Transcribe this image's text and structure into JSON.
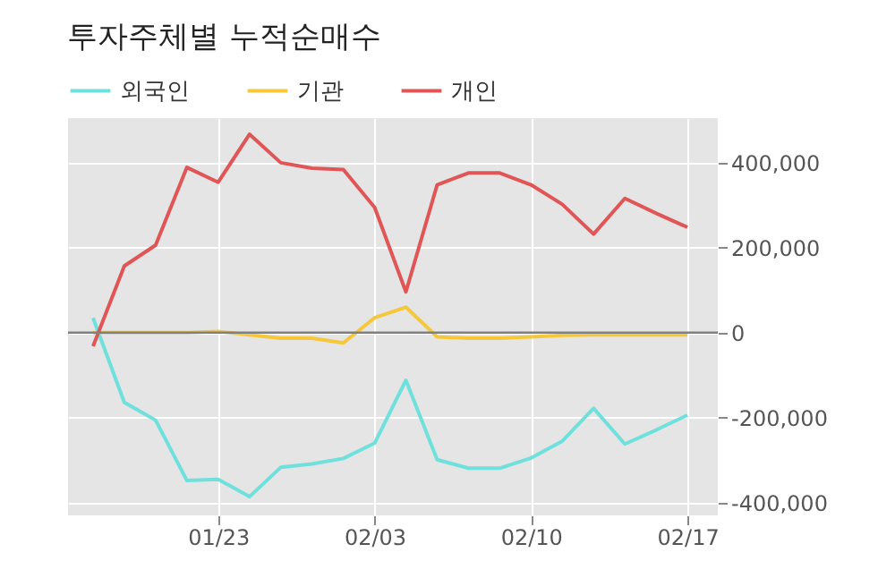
{
  "chart_data": {
    "type": "line",
    "title": "투자주체별 누적순매수",
    "categories": [
      null,
      null,
      null,
      null,
      "01/23",
      null,
      null,
      null,
      null,
      "02/03",
      null,
      null,
      null,
      null,
      "02/10",
      null,
      null,
      null,
      null,
      "02/17"
    ],
    "series": [
      {
        "name": "외국인",
        "color": "#6fe0dc",
        "values": [
          35000,
          -164000,
          -206000,
          -348000,
          -345000,
          -386000,
          -317000,
          -309000,
          -296000,
          -260000,
          -112000,
          -299000,
          -319000,
          -319000,
          -295000,
          -255000,
          -178000,
          -262000,
          -229000,
          -194000
        ]
      },
      {
        "name": "기관",
        "color": "#f5c83c",
        "values": [
          0,
          0,
          0,
          0,
          3000,
          -5000,
          -13000,
          -13000,
          -24000,
          35000,
          60000,
          -10000,
          -13000,
          -13000,
          -10000,
          -6000,
          -5000,
          -5000,
          -5000,
          -5000
        ]
      },
      {
        "name": "개인",
        "color": "#e05555",
        "values": [
          -32000,
          157000,
          206000,
          389000,
          354000,
          467000,
          400000,
          387000,
          384000,
          295000,
          96000,
          348000,
          376000,
          376000,
          348000,
          302000,
          232000,
          316000,
          281000,
          248000
        ]
      }
    ],
    "ylim": [
      -430000,
      505000
    ],
    "yticks": [
      {
        "value": -400000,
        "label": "-400,000"
      },
      {
        "value": -200000,
        "label": "-200,000"
      },
      0,
      {
        "value": 200000,
        "label": "200,000"
      },
      {
        "value": 400000,
        "label": "400,000"
      }
    ],
    "ref_lines": [
      {
        "axis": "y",
        "value": 0,
        "color": "#808080"
      }
    ],
    "grid": true,
    "legend": "top left",
    "line_style": "solid",
    "marker": "none"
  }
}
